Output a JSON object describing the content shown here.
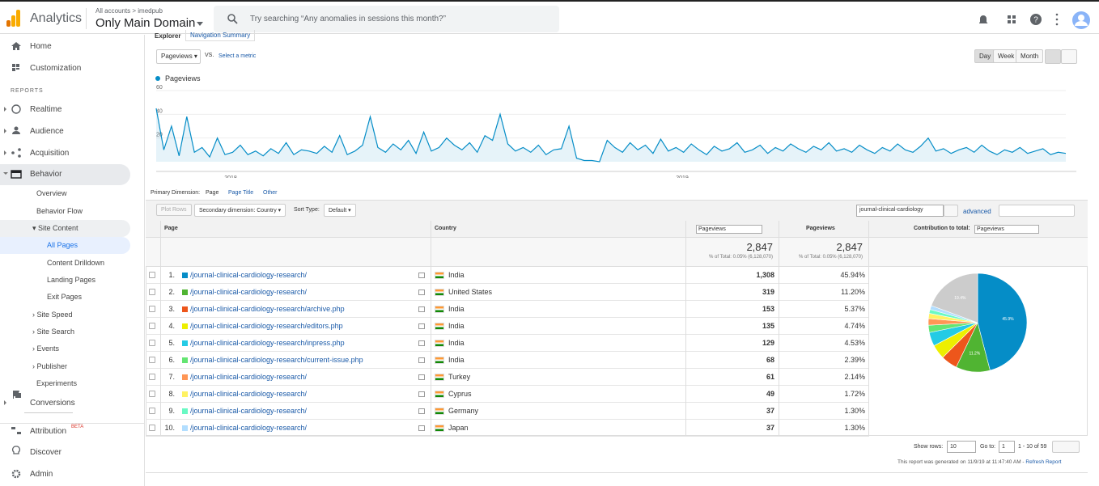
{
  "header": {
    "brand": "Analytics",
    "account_path": "All accounts > imedpub",
    "property": "Only Main Domain",
    "search_placeholder": "Try searching “Any anomalies in sessions this month?”"
  },
  "sidebar": {
    "items": [
      "Home",
      "Customization",
      "REPORTS",
      "Realtime",
      "Audience",
      "Acquisition",
      "Behavior",
      "Overview",
      "Behavior Flow",
      "Site Content",
      "All Pages",
      "Content Drilldown",
      "Landing Pages",
      "Exit Pages",
      "Site Speed",
      "Site Search",
      "Events",
      "Publisher",
      "Experiments",
      "Conversions",
      "Attribution",
      "Discover",
      "Admin"
    ],
    "beta_badge": "BETA"
  },
  "tabs": [
    "Explorer",
    "Navigation Summary"
  ],
  "controls": {
    "metric": "Pageviews",
    "vs": "VS.",
    "select_metric": "Select a metric",
    "periods": [
      "Day",
      "Week",
      "Month"
    ]
  },
  "chart_data": {
    "type": "line",
    "series": [
      {
        "name": "Pageviews",
        "color": "#058dc7",
        "values": [
          45,
          10,
          30,
          5,
          38,
          8,
          12,
          4,
          20,
          6,
          8,
          14,
          6,
          9,
          5,
          11,
          7,
          16,
          6,
          10,
          9,
          7,
          13,
          8,
          22,
          6,
          9,
          14,
          38,
          12,
          8,
          15,
          10,
          18,
          7,
          25,
          9,
          12,
          20,
          14,
          10,
          16,
          8,
          22,
          18,
          40,
          15,
          9,
          12,
          8,
          14,
          6,
          10,
          11,
          30,
          3,
          1,
          1,
          0,
          18,
          12,
          8,
          16,
          10,
          14,
          7,
          19,
          9,
          12,
          8,
          15,
          10,
          6,
          13,
          9,
          11,
          16,
          8,
          10,
          14,
          7,
          12,
          9,
          15,
          11,
          8,
          13,
          10,
          16,
          9,
          11,
          8,
          14,
          10,
          7,
          12,
          9,
          15,
          10,
          8,
          13,
          20,
          9,
          11,
          7,
          10,
          12,
          8,
          14,
          9,
          6,
          10,
          8,
          12,
          7,
          9,
          11,
          6,
          8,
          7
        ]
      }
    ],
    "x_labels": [
      "2018",
      "2019"
    ],
    "ylim": [
      0,
      60
    ],
    "yticks": [
      20,
      40,
      60
    ]
  },
  "table": {
    "primary_dimension_label": "Primary Dimension:",
    "primary_dimensions": [
      "Page",
      "Page Title",
      "Other"
    ],
    "plot_rows": "Plot Rows",
    "secondary_dimension": "Secondary dimension: Country",
    "sort_type_label": "Sort Type:",
    "sort_type": "Default",
    "filter": "journal-clinical-cardiology",
    "advanced": "advanced",
    "columns": [
      "Page",
      "Country",
      "Pageviews",
      "Pageviews",
      "Contribution to total:"
    ],
    "contribution_metric": "Pageviews",
    "totals": [
      "2,847",
      "% of Total: 0.05% (6,128,070)",
      "2,847",
      "% of Total: 0.05% (6,128,070)"
    ],
    "rows": [
      [
        "1.",
        "/journal-clinical-cardiology-research/",
        "India",
        "1,308",
        "45.94%"
      ],
      [
        "2.",
        "/journal-clinical-cardiology-research/",
        "United States",
        "319",
        "11.20%"
      ],
      [
        "3.",
        "/journal-clinical-cardiology-research/archive.php",
        "India",
        "153",
        "5.37%"
      ],
      [
        "4.",
        "/journal-clinical-cardiology-research/editors.php",
        "India",
        "135",
        "4.74%"
      ],
      [
        "5.",
        "/journal-clinical-cardiology-research/inpress.php",
        "India",
        "129",
        "4.53%"
      ],
      [
        "6.",
        "/journal-clinical-cardiology-research/current-issue.php",
        "India",
        "68",
        "2.39%"
      ],
      [
        "7.",
        "/journal-clinical-cardiology-research/",
        "Turkey",
        "61",
        "2.14%"
      ],
      [
        "8.",
        "/journal-clinical-cardiology-research/",
        "Cyprus",
        "49",
        "1.72%"
      ],
      [
        "9.",
        "/journal-clinical-cardiology-research/",
        "Germany",
        "37",
        "1.30%"
      ],
      [
        "10.",
        "/journal-clinical-cardiology-research/",
        "Japan",
        "37",
        "1.30%"
      ]
    ],
    "footer": {
      "show_rows": "Show rows:",
      "rows_value": "10",
      "go_to": "Go to:",
      "page_value": "1",
      "range": "1 - 10 of 59",
      "generated": "This report was generated on 11/9/19 at 11:47:40 AM - ",
      "refresh": "Refresh Report"
    }
  },
  "pie": {
    "type": "pie",
    "values": [
      45.94,
      11.2,
      5.37,
      4.74,
      4.53,
      2.39,
      2.14,
      1.72,
      1.3,
      1.3,
      19.37
    ],
    "colors": [
      "#058dc7",
      "#50b432",
      "#ed561b",
      "#edef00",
      "#24cbe5",
      "#64e572",
      "#ff9655",
      "#fff263",
      "#6af9c4",
      "#b2deff",
      "#cccccc"
    ],
    "value_labels": [
      "45.9%",
      "11.2%",
      null,
      null,
      null,
      null,
      null,
      null,
      null,
      null,
      "19.4%"
    ]
  }
}
